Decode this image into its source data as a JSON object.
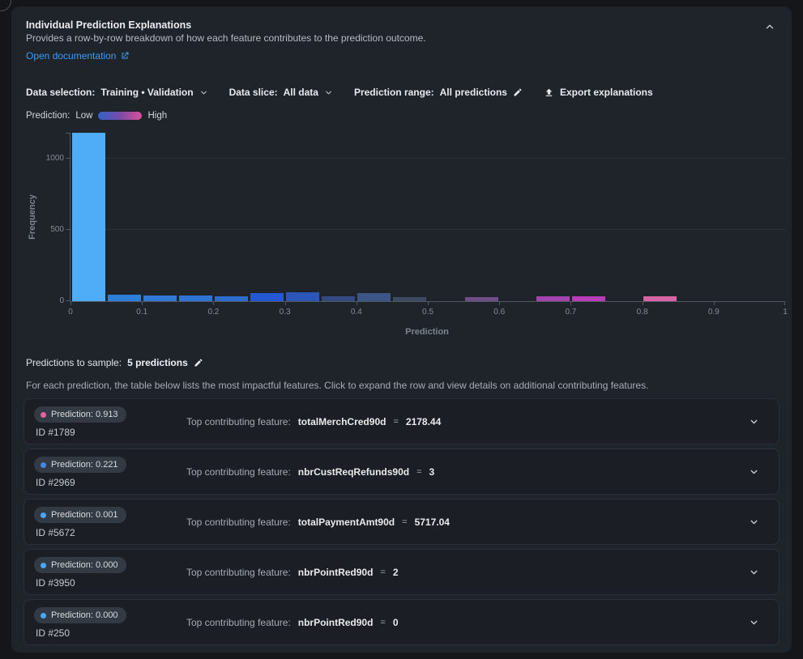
{
  "panel": {
    "title": "Individual Prediction Explanations",
    "subtitle": "Provides a row-by-row breakdown of how each feature contributes to the prediction outcome.",
    "doc_link": "Open documentation"
  },
  "toolbar": {
    "data_selection_label": "Data selection:",
    "data_selection_value": "Training • Validation",
    "data_slice_label": "Data slice:",
    "data_slice_value": "All data",
    "prediction_range_label": "Prediction range:",
    "prediction_range_value": "All predictions",
    "export_label": "Export explanations"
  },
  "legend": {
    "label": "Prediction:",
    "low": "Low",
    "high": "High",
    "gradient": [
      "#2f62c8",
      "#7c4ba8",
      "#d9519c"
    ]
  },
  "chart_data": {
    "type": "bar",
    "title": "",
    "xlabel": "Prediction",
    "ylabel": "Frequency",
    "x_ticks": [
      "0",
      "0.1",
      "0.2",
      "0.3",
      "0.4",
      "0.5",
      "0.6",
      "0.7",
      "0.8",
      "0.9",
      "1"
    ],
    "y_ticks": [
      0,
      500,
      1000
    ],
    "xlim": [
      0,
      1
    ],
    "ylim": [
      0,
      1180
    ],
    "bin_width": 0.05,
    "grid": "horizontal",
    "bins": [
      {
        "x0": 0.0,
        "value": 1180,
        "color": "#4fadf7"
      },
      {
        "x0": 0.05,
        "value": 44,
        "color": "#2e7ed8"
      },
      {
        "x0": 0.1,
        "value": 39,
        "color": "#2e7ad4"
      },
      {
        "x0": 0.15,
        "value": 40,
        "color": "#2d75d0"
      },
      {
        "x0": 0.2,
        "value": 36,
        "color": "#2b6cce"
      },
      {
        "x0": 0.25,
        "value": 59,
        "color": "#2457d2"
      },
      {
        "x0": 0.3,
        "value": 63,
        "color": "#2c55b8"
      },
      {
        "x0": 0.35,
        "value": 34,
        "color": "#334a80"
      },
      {
        "x0": 0.4,
        "value": 56,
        "color": "#3a5586"
      },
      {
        "x0": 0.45,
        "value": 30,
        "color": "#3d4a62"
      },
      {
        "x0": 0.5,
        "value": 0,
        "color": "#44506b"
      },
      {
        "x0": 0.55,
        "value": 27,
        "color": "#6f4e87"
      },
      {
        "x0": 0.6,
        "value": 0,
        "color": "#8a4a9e"
      },
      {
        "x0": 0.65,
        "value": 34,
        "color": "#a343ae"
      },
      {
        "x0": 0.7,
        "value": 36,
        "color": "#b83bb8"
      },
      {
        "x0": 0.75,
        "value": 0,
        "color": "#c8459f"
      },
      {
        "x0": 0.8,
        "value": 34,
        "color": "#d863a5"
      },
      {
        "x0": 0.85,
        "value": 0,
        "color": "#dc6ba8"
      },
      {
        "x0": 0.9,
        "value": 0,
        "color": "#e073ab"
      },
      {
        "x0": 0.95,
        "value": 0,
        "color": "#e47bae"
      }
    ]
  },
  "sample": {
    "label": "Predictions to sample:",
    "value": "5 predictions",
    "description": "For each prediction, the table below lists the most impactful features. Click to expand the row and view details on additional contributing features."
  },
  "rows": [
    {
      "badge": "Prediction: 0.913",
      "dot_color": "#e0649e",
      "id": "ID #1789",
      "feature_label": "Top contributing feature:",
      "feature": "totalMerchCred90d",
      "equals": "=",
      "value": "2178.44"
    },
    {
      "badge": "Prediction: 0.221",
      "dot_color": "#4286e8",
      "id": "ID #2969",
      "feature_label": "Top contributing feature:",
      "feature": "nbrCustReqRefunds90d",
      "equals": "=",
      "value": "3"
    },
    {
      "badge": "Prediction: 0.001",
      "dot_color": "#4aa5f2",
      "id": "ID #5672",
      "feature_label": "Top contributing feature:",
      "feature": "totalPaymentAmt90d",
      "equals": "=",
      "value": "5717.04"
    },
    {
      "badge": "Prediction: 0.000",
      "dot_color": "#4aa5f2",
      "id": "ID #3950",
      "feature_label": "Top contributing feature:",
      "feature": "nbrPointRed90d",
      "equals": "=",
      "value": "2"
    },
    {
      "badge": "Prediction: 0.000",
      "dot_color": "#4aa5f2",
      "id": "ID #250",
      "feature_label": "Top contributing feature:",
      "feature": "nbrPointRed90d",
      "equals": "=",
      "value": "0"
    }
  ]
}
